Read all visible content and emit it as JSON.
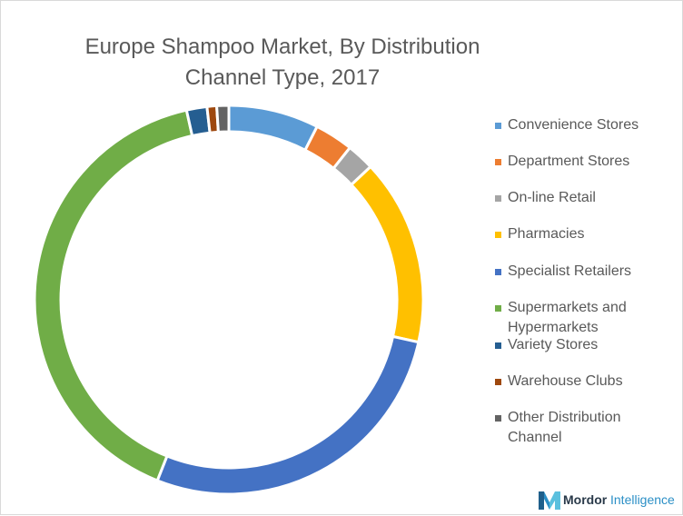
{
  "chart_data": {
    "type": "pie",
    "variant": "donut",
    "title": "Europe Shampoo Market, By Distribution Channel Type, 2017",
    "title_lines": [
      "Europe Shampoo Market, By Distribution",
      "Channel Type, 2017"
    ],
    "legend_position": "right",
    "series": [
      {
        "name": "Convenience Stores",
        "value": 7.5,
        "color": "#5b9bd5"
      },
      {
        "name": "Department Stores",
        "value": 3.2,
        "color": "#ed7d31"
      },
      {
        "name": "On-line Retail",
        "value": 2.3,
        "color": "#a5a5a5"
      },
      {
        "name": "Pharmacies",
        "value": 15.5,
        "color": "#ffc000"
      },
      {
        "name": "Specialist Retailers",
        "value": 27.5,
        "color": "#4472c4"
      },
      {
        "name": "Supermarkets and Hypermarkets",
        "value": 40.5,
        "color": "#70ad47"
      },
      {
        "name": "Variety Stores",
        "value": 1.7,
        "color": "#255e91"
      },
      {
        "name": "Warehouse Clubs",
        "value": 0.8,
        "color": "#9e480e"
      },
      {
        "name": "Other Distribution Channel",
        "value": 1.0,
        "color": "#636363"
      }
    ],
    "legend": [
      {
        "lines": [
          "Convenience Stores"
        ]
      },
      {
        "lines": [
          "Department Stores"
        ]
      },
      {
        "lines": [
          "On-line Retail"
        ]
      },
      {
        "lines": [
          "Pharmacies"
        ]
      },
      {
        "lines": [
          "Specialist Retailers"
        ]
      },
      {
        "lines": [
          "Supermarkets and",
          "Hypermarkets"
        ]
      },
      {
        "lines": [
          "Variety Stores"
        ]
      },
      {
        "lines": [
          "Warehouse Clubs"
        ]
      },
      {
        "lines": [
          "Other Distribution",
          "Channel"
        ]
      }
    ]
  },
  "branding": {
    "logo_text_1": "Mordor",
    "logo_text_2": "Intelligence",
    "logo_icon": "mordor-intelligence-logo-icon",
    "logo_colors": [
      "#1f5f8b",
      "#2b8fc6",
      "#5bc0de"
    ]
  }
}
